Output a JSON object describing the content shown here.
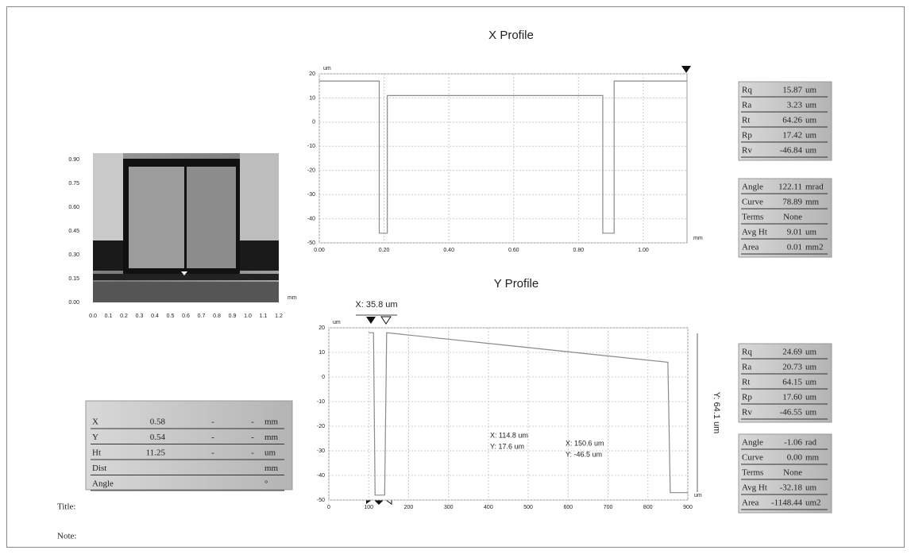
{
  "chart_data": [
    {
      "type": "line",
      "title": "X Profile",
      "y_unit": "um",
      "x_unit": "mm",
      "x": [
        0,
        0.185,
        0.185,
        0.21,
        0.21,
        0.875,
        0.875,
        0.91,
        0.91,
        1.135
      ],
      "values": [
        17,
        17,
        -46,
        -46,
        11,
        11,
        -46,
        -46,
        17,
        17
      ],
      "color": "#8a8a8a",
      "xlim": [
        0,
        1.135
      ],
      "ylim": [
        -50,
        20
      ],
      "xticks": [
        {
          "value": 0,
          "label": "0.00"
        },
        {
          "value": 0.2,
          "label": "0.20"
        },
        {
          "value": 0.4,
          "label": "0.40"
        },
        {
          "value": 0.6,
          "label": "0.60"
        },
        {
          "value": 0.8,
          "label": "0.80"
        },
        {
          "value": 1,
          "label": "1.00"
        }
      ],
      "yticks": [
        20,
        10,
        0,
        -10,
        -20,
        -30,
        -40,
        -50
      ],
      "grid": true
    },
    {
      "type": "line",
      "title": "Y Profile",
      "y_unit": "um",
      "x_unit": "um",
      "x": [
        100,
        112,
        116,
        140,
        145,
        850,
        856,
        900
      ],
      "values": [
        18,
        18,
        -48,
        -48,
        18,
        6,
        -47,
        -47
      ],
      "color": "#8a8a8a",
      "xlim": [
        0,
        900
      ],
      "ylim": [
        -50,
        20
      ],
      "xticks": [
        0,
        100,
        200,
        300,
        400,
        500,
        600,
        700,
        800,
        900
      ],
      "yticks": [
        20,
        10,
        0,
        -10,
        -20,
        -30,
        -40,
        -50
      ],
      "grid": true,
      "annotations": [
        "X: 35.8 um",
        "Y: 64.1 um",
        "X: 114.8 um",
        "Y: 17.6 um",
        "X: 150.6 um",
        "Y: -46.5 um"
      ]
    }
  ],
  "image_axes": {
    "yticks": [
      "0.90",
      "0.75",
      "0.60",
      "0.45",
      "0.30",
      "0.15",
      "0.00"
    ],
    "xticks": [
      "0.0",
      "0.1",
      "0.2",
      "0.3",
      "0.4",
      "0.5",
      "0.6",
      "0.7",
      "0.8",
      "0.9",
      "1.0",
      "1.1",
      "1.2"
    ],
    "unit": "mm"
  },
  "tables": [
    {
      "rows": [
        [
          "Rq",
          "15.87",
          "um"
        ],
        [
          "Ra",
          "3.23",
          "um"
        ],
        [
          "Rt",
          "64.26",
          "um"
        ],
        [
          "Rp",
          "17.42",
          "um"
        ],
        [
          "Rv",
          "-46.84",
          "um"
        ]
      ]
    },
    {
      "rows": [
        [
          "Angle",
          "122.11",
          "mrad"
        ],
        [
          "Curve",
          "78.89",
          "mm"
        ],
        [
          "Terms",
          "None",
          ""
        ],
        [
          "Avg Ht",
          "9.01",
          "um"
        ],
        [
          "Area",
          "0.01",
          "mm2"
        ]
      ]
    },
    {
      "rows": [
        [
          "Rq",
          "24.69",
          "um"
        ],
        [
          "Ra",
          "20.73",
          "um"
        ],
        [
          "Rt",
          "64.15",
          "um"
        ],
        [
          "Rp",
          "17.60",
          "um"
        ],
        [
          "Rv",
          "-46.55",
          "um"
        ]
      ]
    },
    {
      "rows": [
        [
          "Angle",
          "-1.06",
          "rad"
        ],
        [
          "Curve",
          "0.00",
          "mm"
        ],
        [
          "Terms",
          "None",
          ""
        ],
        [
          "Avg Ht",
          "-32.18",
          "um"
        ],
        [
          "Area",
          "-1148.44",
          "um2"
        ]
      ]
    }
  ],
  "cursor_table": {
    "rows": [
      [
        "X",
        "0.58",
        "-",
        "-",
        "mm"
      ],
      [
        "Y",
        "0.54",
        "-",
        "-",
        "mm"
      ],
      [
        "Ht",
        "11.25",
        "-",
        "-",
        "um"
      ],
      [
        "Dist",
        "",
        "",
        "",
        "mm"
      ],
      [
        "Angle",
        "",
        "",
        "",
        "°"
      ]
    ]
  },
  "footer": {
    "title": "Title:",
    "note": "Note:"
  }
}
